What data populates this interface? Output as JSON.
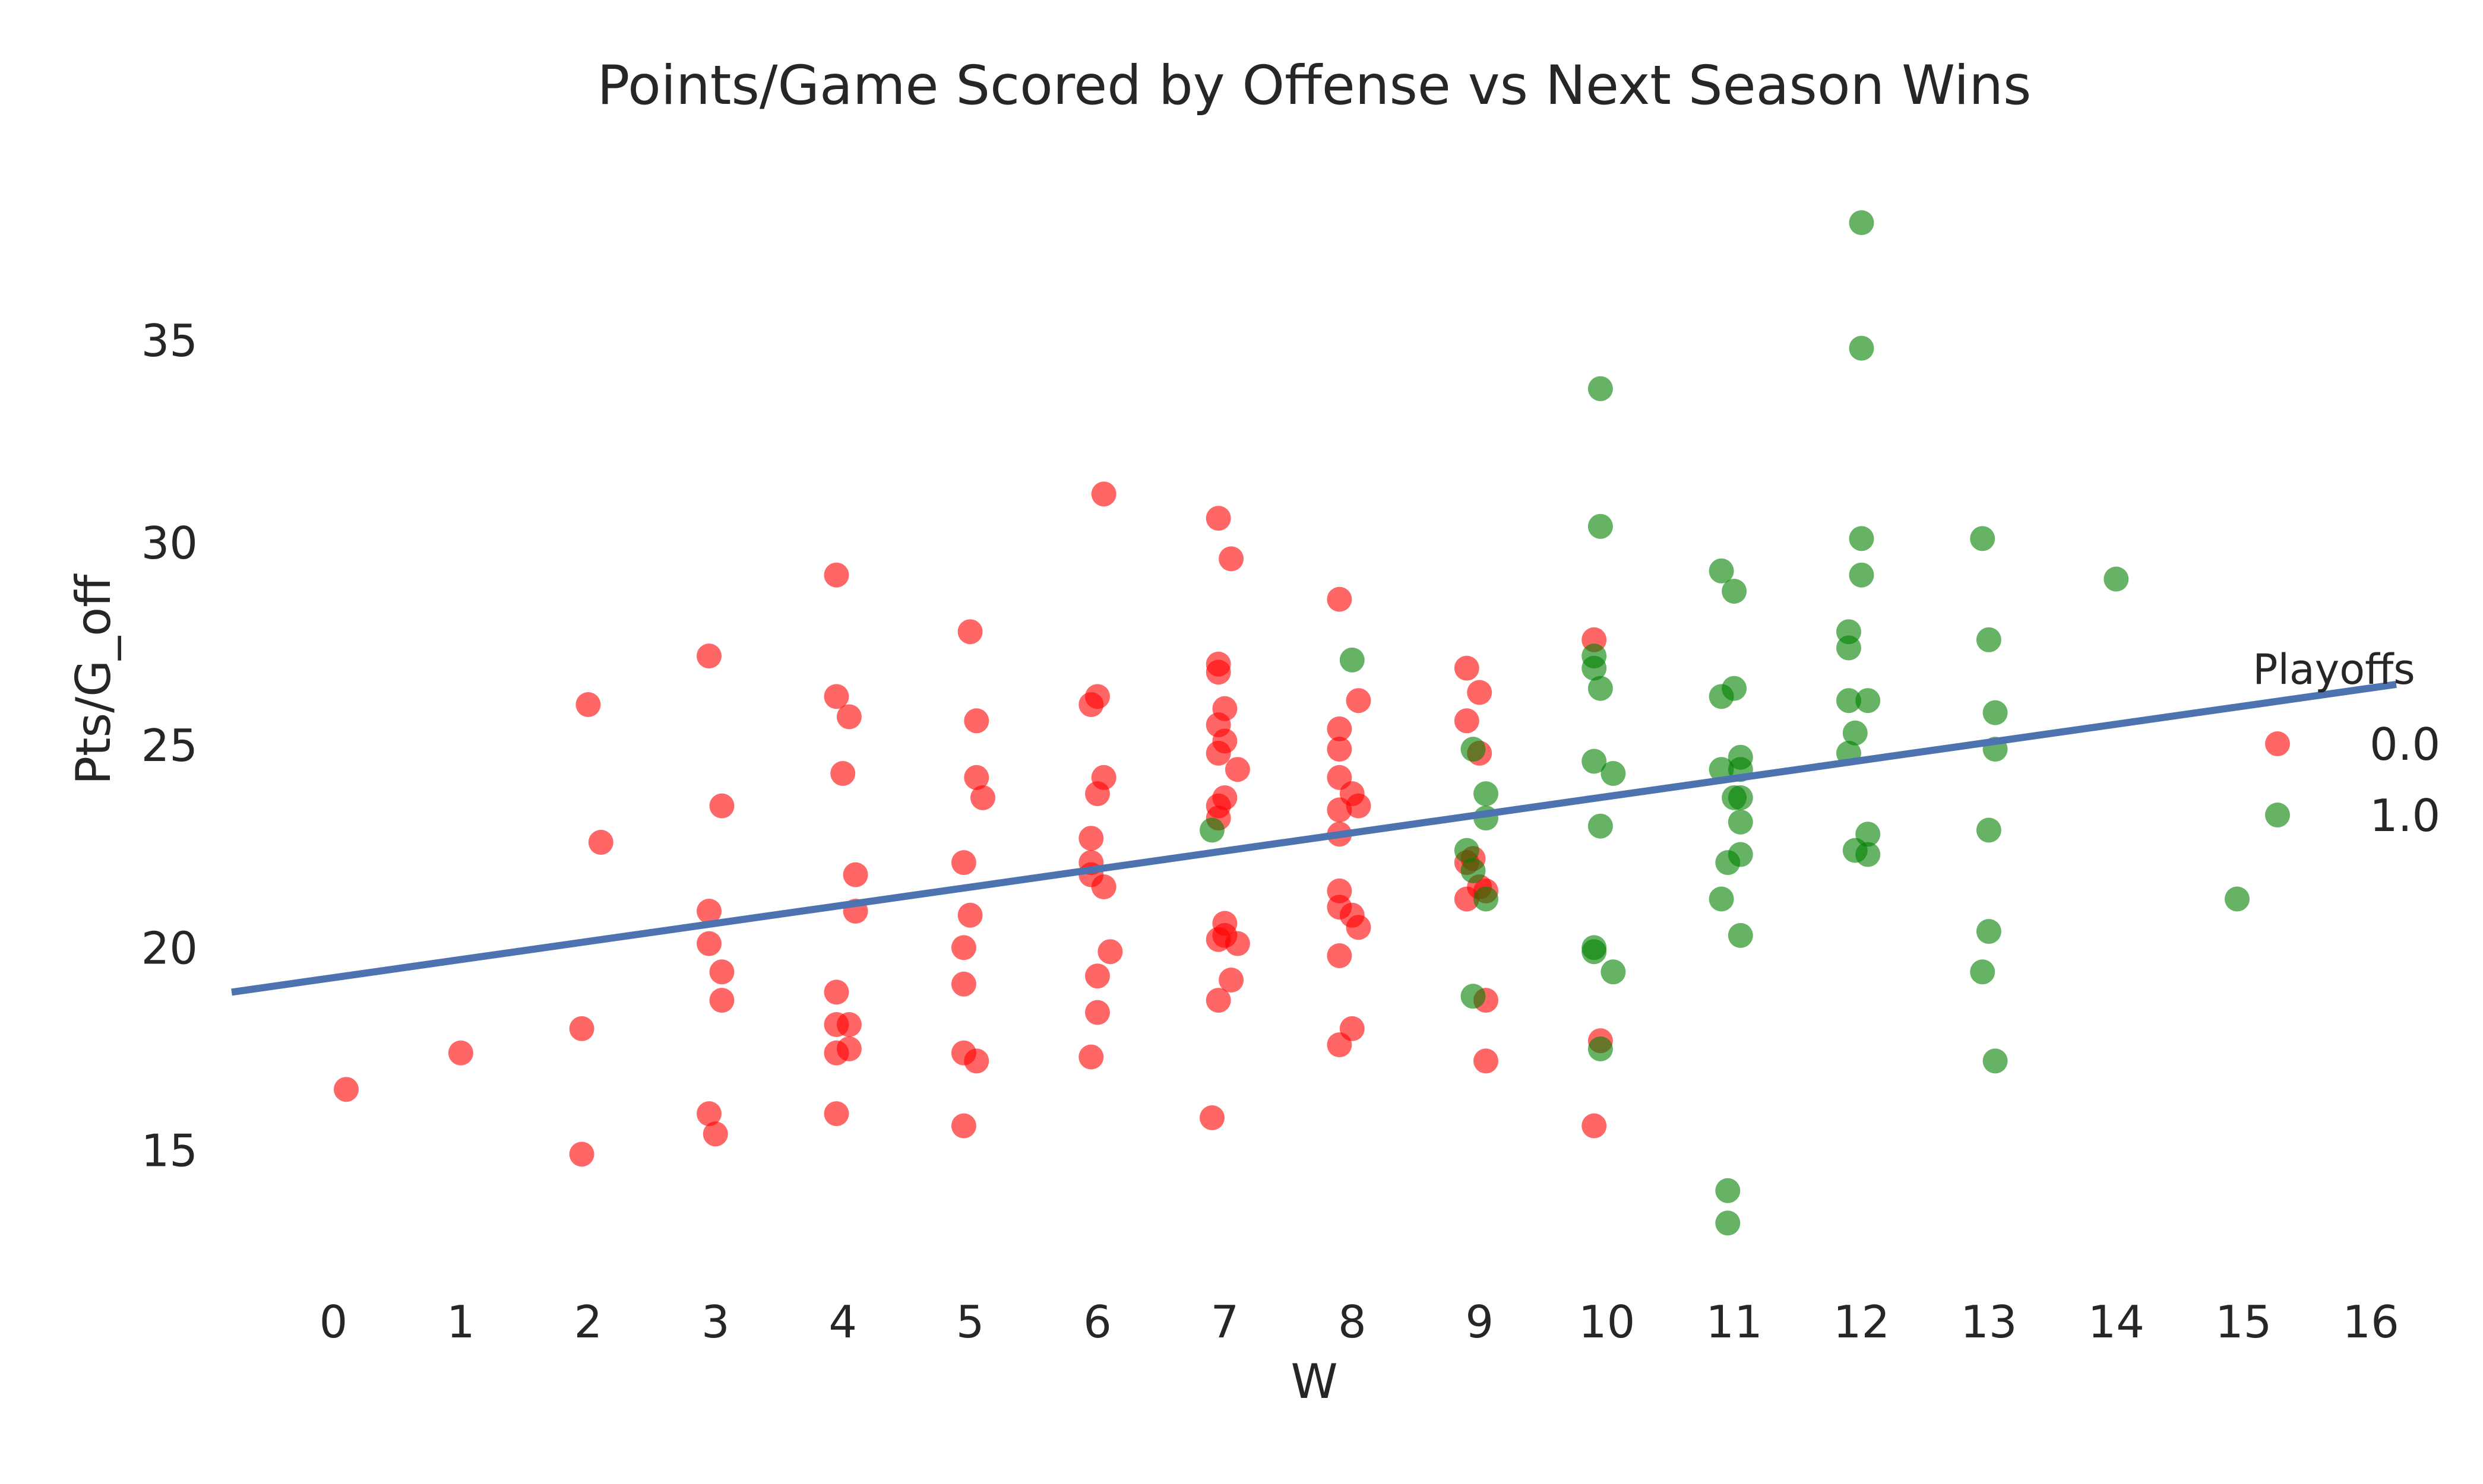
{
  "chart_data": {
    "type": "scatter",
    "title": "Points/Game Scored by Offense vs Next Season Wins",
    "xlabel": "W",
    "ylabel": "Pts/G_off",
    "xlim": [
      -0.8,
      16.2
    ],
    "ylim": [
      11.3,
      39.0
    ],
    "xticks": [
      0,
      1,
      2,
      3,
      4,
      5,
      6,
      7,
      8,
      9,
      10,
      11,
      12,
      13,
      14,
      15,
      16
    ],
    "yticks": [
      15,
      20,
      25,
      30,
      35
    ],
    "grid": false,
    "legend": {
      "title": "Playoffs",
      "placement": "right",
      "entries": [
        "0.0",
        "1.0"
      ]
    },
    "colors": {
      "0.0": "#ff0000",
      "1.0": "#008000",
      "fit": "#4c72b0"
    },
    "fit_line": {
      "x": [
        -0.8,
        16.2
      ],
      "y": [
        18.9,
        26.5
      ]
    },
    "series": [
      {
        "name": "0.0",
        "points": [
          [
            0.1,
            16.5
          ],
          [
            1.0,
            17.4
          ],
          [
            1.95,
            18.0
          ],
          [
            2.0,
            26.0
          ],
          [
            1.95,
            14.9
          ],
          [
            2.1,
            22.6
          ],
          [
            2.95,
            27.2
          ],
          [
            3.05,
            23.5
          ],
          [
            2.95,
            20.9
          ],
          [
            2.95,
            20.1
          ],
          [
            3.05,
            19.4
          ],
          [
            3.05,
            18.7
          ],
          [
            2.95,
            15.9
          ],
          [
            3.0,
            15.4
          ],
          [
            3.95,
            29.2
          ],
          [
            3.95,
            26.2
          ],
          [
            4.05,
            25.7
          ],
          [
            4.0,
            24.3
          ],
          [
            4.1,
            21.8
          ],
          [
            4.1,
            20.9
          ],
          [
            3.95,
            18.9
          ],
          [
            3.95,
            18.1
          ],
          [
            4.05,
            18.1
          ],
          [
            3.95,
            17.4
          ],
          [
            4.05,
            17.5
          ],
          [
            3.95,
            15.9
          ],
          [
            5.0,
            27.8
          ],
          [
            5.05,
            25.6
          ],
          [
            5.05,
            24.2
          ],
          [
            5.1,
            23.7
          ],
          [
            4.95,
            22.1
          ],
          [
            5.0,
            20.8
          ],
          [
            4.95,
            20.0
          ],
          [
            4.95,
            19.1
          ],
          [
            4.95,
            17.4
          ],
          [
            5.05,
            17.2
          ],
          [
            4.95,
            15.6
          ],
          [
            6.05,
            31.2
          ],
          [
            6.0,
            26.2
          ],
          [
            5.95,
            26.0
          ],
          [
            6.05,
            24.2
          ],
          [
            6.0,
            23.8
          ],
          [
            5.95,
            22.7
          ],
          [
            5.95,
            22.1
          ],
          [
            5.95,
            21.8
          ],
          [
            6.05,
            21.5
          ],
          [
            6.1,
            19.9
          ],
          [
            6.0,
            19.3
          ],
          [
            6.0,
            18.4
          ],
          [
            5.95,
            17.3
          ],
          [
            6.95,
            30.6
          ],
          [
            7.05,
            29.6
          ],
          [
            6.95,
            27.0
          ],
          [
            6.95,
            26.8
          ],
          [
            7.0,
            25.9
          ],
          [
            6.95,
            25.5
          ],
          [
            7.0,
            25.1
          ],
          [
            6.95,
            24.8
          ],
          [
            7.1,
            24.4
          ],
          [
            7.0,
            23.7
          ],
          [
            6.95,
            23.5
          ],
          [
            6.95,
            23.2
          ],
          [
            7.0,
            20.6
          ],
          [
            6.95,
            20.2
          ],
          [
            7.0,
            20.3
          ],
          [
            7.1,
            20.1
          ],
          [
            7.05,
            19.2
          ],
          [
            6.95,
            18.7
          ],
          [
            6.9,
            15.8
          ],
          [
            7.9,
            28.6
          ],
          [
            8.05,
            26.1
          ],
          [
            7.9,
            25.4
          ],
          [
            7.9,
            24.9
          ],
          [
            7.9,
            24.2
          ],
          [
            8.0,
            23.8
          ],
          [
            7.9,
            23.4
          ],
          [
            8.05,
            23.5
          ],
          [
            7.9,
            22.8
          ],
          [
            7.9,
            21.4
          ],
          [
            7.9,
            21.0
          ],
          [
            8.0,
            20.8
          ],
          [
            8.05,
            20.5
          ],
          [
            7.9,
            19.8
          ],
          [
            8.0,
            18.0
          ],
          [
            7.9,
            17.6
          ],
          [
            8.9,
            26.9
          ],
          [
            9.0,
            26.3
          ],
          [
            8.9,
            25.6
          ],
          [
            9.0,
            24.8
          ],
          [
            8.9,
            22.1
          ],
          [
            8.95,
            22.2
          ],
          [
            9.0,
            21.5
          ],
          [
            9.05,
            21.4
          ],
          [
            8.9,
            21.2
          ],
          [
            9.05,
            18.7
          ],
          [
            9.05,
            17.2
          ],
          [
            9.9,
            27.6
          ],
          [
            9.95,
            17.7
          ],
          [
            9.9,
            15.6
          ]
        ]
      },
      {
        "name": "1.0",
        "points": [
          [
            6.9,
            22.9
          ],
          [
            8.0,
            27.1
          ],
          [
            8.95,
            24.9
          ],
          [
            9.05,
            23.8
          ],
          [
            9.05,
            23.2
          ],
          [
            8.9,
            22.4
          ],
          [
            8.95,
            21.9
          ],
          [
            9.05,
            21.2
          ],
          [
            8.95,
            18.8
          ],
          [
            9.95,
            33.8
          ],
          [
            9.95,
            30.4
          ],
          [
            9.9,
            27.2
          ],
          [
            9.9,
            26.9
          ],
          [
            9.95,
            26.4
          ],
          [
            9.9,
            24.6
          ],
          [
            10.05,
            24.3
          ],
          [
            9.95,
            23.0
          ],
          [
            9.9,
            20.0
          ],
          [
            9.9,
            19.9
          ],
          [
            10.05,
            19.4
          ],
          [
            9.95,
            17.5
          ],
          [
            10.9,
            29.3
          ],
          [
            11.0,
            28.8
          ],
          [
            11.0,
            26.4
          ],
          [
            10.9,
            26.2
          ],
          [
            11.05,
            24.7
          ],
          [
            10.9,
            24.4
          ],
          [
            11.05,
            24.4
          ],
          [
            11.0,
            23.7
          ],
          [
            11.05,
            23.7
          ],
          [
            11.05,
            23.1
          ],
          [
            11.05,
            22.3
          ],
          [
            10.95,
            22.1
          ],
          [
            10.9,
            21.2
          ],
          [
            11.05,
            20.3
          ],
          [
            10.95,
            14.0
          ],
          [
            10.95,
            13.2
          ],
          [
            12.0,
            37.9
          ],
          [
            12.0,
            34.8
          ],
          [
            12.0,
            30.1
          ],
          [
            12.0,
            29.2
          ],
          [
            11.9,
            27.8
          ],
          [
            11.9,
            27.4
          ],
          [
            11.9,
            26.1
          ],
          [
            12.05,
            26.1
          ],
          [
            11.95,
            25.3
          ],
          [
            11.9,
            24.8
          ],
          [
            11.95,
            22.4
          ],
          [
            12.05,
            22.3
          ],
          [
            12.05,
            22.8
          ],
          [
            12.95,
            30.1
          ],
          [
            13.0,
            27.6
          ],
          [
            13.05,
            25.8
          ],
          [
            13.05,
            24.9
          ],
          [
            13.0,
            22.9
          ],
          [
            13.0,
            20.4
          ],
          [
            12.95,
            19.4
          ],
          [
            13.05,
            17.2
          ],
          [
            14.0,
            29.1
          ],
          [
            14.95,
            21.2
          ]
        ]
      }
    ]
  }
}
